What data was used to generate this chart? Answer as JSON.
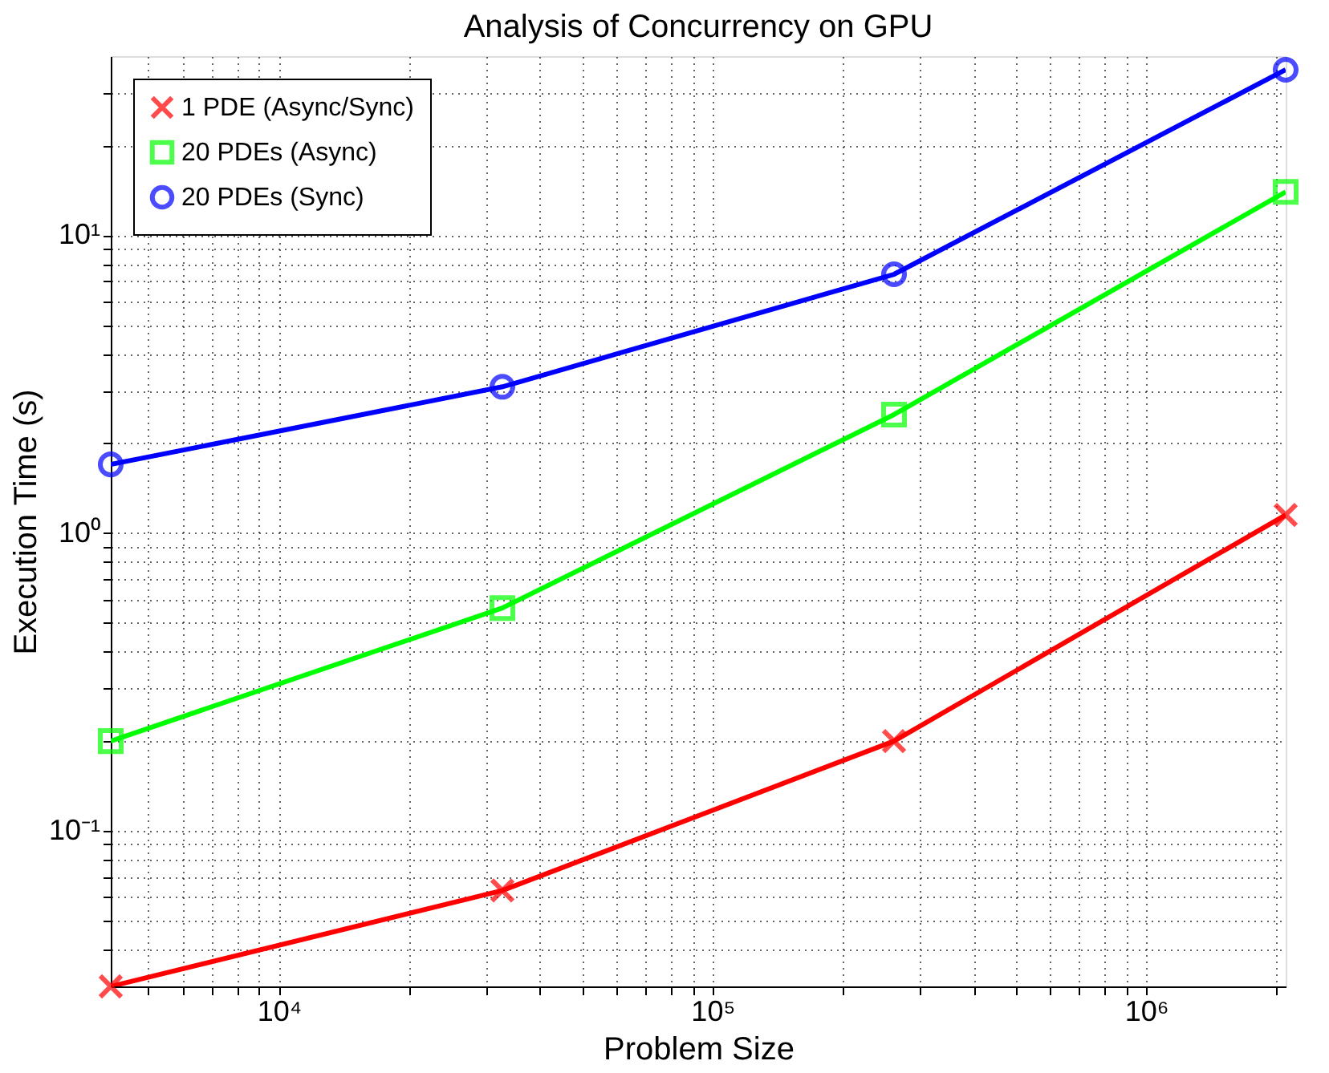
{
  "chart_data": {
    "type": "line",
    "title": "Analysis of Concurrency on GPU",
    "xlabel": "Problem Size",
    "ylabel": "Execution Time (s)",
    "x": [
      4096,
      32768,
      262144,
      2097152
    ],
    "series": [
      {
        "name": "1 PDE (Async/Sync)",
        "color": "#ff0000",
        "marker": "cross",
        "values": [
          0.03,
          0.063,
          0.2,
          1.15
        ]
      },
      {
        "name": "20 PDEs (Async)",
        "color": "#00ff00",
        "marker": "square",
        "values": [
          0.2,
          0.56,
          2.5,
          14
        ]
      },
      {
        "name": "20 PDEs (Sync)",
        "color": "#0000ff",
        "marker": "circle",
        "values": [
          1.7,
          3.1,
          7.4,
          36
        ]
      }
    ],
    "log": "xy",
    "xlim": [
      4096,
      2097152
    ],
    "ylim": [
      0.03,
      40
    ],
    "xticks": [
      {
        "value": 5000,
        "label": null
      },
      {
        "value": 6000,
        "label": null
      },
      {
        "value": 7000,
        "label": null
      },
      {
        "value": 8000,
        "label": null
      },
      {
        "value": 9000,
        "label": null
      },
      {
        "value": 10000,
        "label": "10⁴"
      },
      {
        "value": 20000,
        "label": null
      },
      {
        "value": 30000,
        "label": null
      },
      {
        "value": 40000,
        "label": null
      },
      {
        "value": 50000,
        "label": null
      },
      {
        "value": 60000,
        "label": null
      },
      {
        "value": 70000,
        "label": null
      },
      {
        "value": 80000,
        "label": null
      },
      {
        "value": 90000,
        "label": null
      },
      {
        "value": 100000,
        "label": "10⁵"
      },
      {
        "value": 200000,
        "label": null
      },
      {
        "value": 300000,
        "label": null
      },
      {
        "value": 400000,
        "label": null
      },
      {
        "value": 500000,
        "label": null
      },
      {
        "value": 600000,
        "label": null
      },
      {
        "value": 700000,
        "label": null
      },
      {
        "value": 800000,
        "label": null
      },
      {
        "value": 900000,
        "label": null
      },
      {
        "value": 1000000,
        "label": "10⁶"
      },
      {
        "value": 2000000,
        "label": null
      }
    ],
    "yticks": [
      {
        "value": 0.04,
        "label": null
      },
      {
        "value": 0.05,
        "label": null
      },
      {
        "value": 0.06,
        "label": null
      },
      {
        "value": 0.07,
        "label": null
      },
      {
        "value": 0.08,
        "label": null
      },
      {
        "value": 0.09,
        "label": null
      },
      {
        "value": 0.1,
        "label": "10⁻¹"
      },
      {
        "value": 0.2,
        "label": null
      },
      {
        "value": 0.3,
        "label": null
      },
      {
        "value": 0.4,
        "label": null
      },
      {
        "value": 0.5,
        "label": null
      },
      {
        "value": 0.6,
        "label": null
      },
      {
        "value": 0.7,
        "label": null
      },
      {
        "value": 0.8,
        "label": null
      },
      {
        "value": 0.9,
        "label": null
      },
      {
        "value": 1,
        "label": "10⁰"
      },
      {
        "value": 2,
        "label": null
      },
      {
        "value": 3,
        "label": null
      },
      {
        "value": 4,
        "label": null
      },
      {
        "value": 5,
        "label": null
      },
      {
        "value": 6,
        "label": null
      },
      {
        "value": 7,
        "label": null
      },
      {
        "value": 8,
        "label": null
      },
      {
        "value": 9,
        "label": null
      },
      {
        "value": 10,
        "label": "10¹"
      },
      {
        "value": 20,
        "label": null
      },
      {
        "value": 30,
        "label": null
      }
    ],
    "grid": true,
    "legend": "top left",
    "line_style": "solid"
  }
}
